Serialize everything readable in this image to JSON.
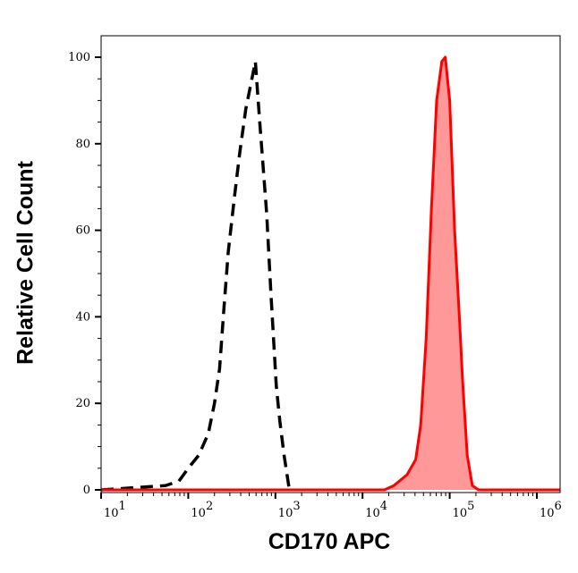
{
  "chart_data": {
    "type": "area",
    "xlabel": "CD170 APC",
    "ylabel": "Relative Cell Count",
    "x_scale": "log",
    "xlim": [
      10,
      1860000
    ],
    "ylim": [
      0,
      105
    ],
    "x_ticks": [
      {
        "base": "10",
        "exp": "1"
      },
      {
        "base": "10",
        "exp": "2"
      },
      {
        "base": "10",
        "exp": "3"
      },
      {
        "base": "10",
        "exp": "4"
      },
      {
        "base": "10",
        "exp": "5"
      },
      {
        "base": "10",
        "exp": "6"
      }
    ],
    "y_ticks": [
      "0",
      "20",
      "40",
      "60",
      "80",
      "100"
    ],
    "grid": false,
    "series": [
      {
        "style": "dashed-line",
        "color": "#000000",
        "x": [
          10,
          24,
          55,
          78,
          100,
          132,
          170,
          200,
          229,
          257,
          288,
          340,
          390,
          457,
          513,
          589,
          661,
          794,
          891,
          1023,
          1122,
          1259,
          1445
        ],
        "y": [
          0,
          0.5,
          1,
          2,
          5,
          8,
          13,
          20,
          28,
          42,
          55,
          68,
          78,
          88,
          93,
          99,
          85,
          64,
          45,
          24,
          16,
          8,
          0
        ]
      },
      {
        "style": "filled",
        "color": "#ff0000",
        "fill": "#ff9999",
        "x": [
          10,
          17800,
          22900,
          32400,
          40700,
          46500,
          53700,
          61700,
          70800,
          81300,
          89100,
          100000,
          114000,
          129000,
          141000,
          159000,
          182000,
          214000,
          1860000
        ],
        "y": [
          0,
          0,
          1,
          3.5,
          7,
          15,
          35,
          65,
          90,
          99,
          100,
          90,
          60,
          40,
          25,
          8,
          1,
          0,
          0
        ]
      }
    ]
  }
}
